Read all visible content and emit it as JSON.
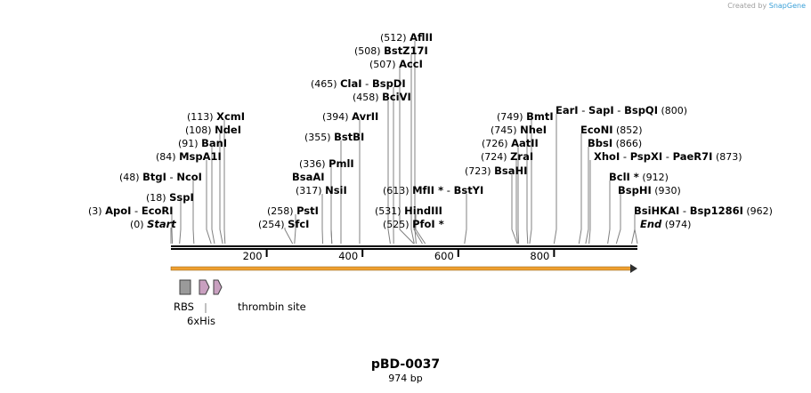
{
  "credit": {
    "prefix": "Created by",
    "brand": "SnapGene"
  },
  "title": "pBD-0037",
  "subtitle": "974 bp",
  "sequence_length": 974,
  "colors": {
    "backbone": "#000000",
    "arrow": "#f0a030",
    "rbs": "#9a9a9a",
    "his": "#c9a0c0",
    "leader": "#808080"
  },
  "ruler": [
    200,
    400,
    600,
    800
  ],
  "sites": [
    {
      "pos": "(512)",
      "enzymes": [
        "AflII"
      ],
      "cut": 512
    },
    {
      "pos": "(508)",
      "enzymes": [
        "BstZ17I"
      ],
      "cut": 508
    },
    {
      "pos": "(507)",
      "enzymes": [
        "AccI"
      ],
      "cut": 507
    },
    {
      "pos": "(465)",
      "enzymes": [
        "ClaI",
        "BspDI"
      ],
      "cut": 465
    },
    {
      "pos": "(458)",
      "enzymes": [
        "BciVI"
      ],
      "cut": 458
    },
    {
      "pos": "(394)",
      "enzymes": [
        "AvrII"
      ],
      "cut": 394
    },
    {
      "pos": "(355)",
      "enzymes": [
        "BstBI"
      ],
      "cut": 355
    },
    {
      "pos": "(336)",
      "enzymes": [
        "PmlI"
      ],
      "cut": 336
    },
    {
      "pos": "",
      "enzymes": [
        "BsaAI"
      ],
      "cut": 336
    },
    {
      "pos": "(317)",
      "enzymes": [
        "NsiI"
      ],
      "cut": 317
    },
    {
      "pos": "(258)",
      "enzymes": [
        "PstI"
      ],
      "cut": 258
    },
    {
      "pos": "(254)",
      "enzymes": [
        "SfcI"
      ],
      "cut": 254
    },
    {
      "pos": "(113)",
      "enzymes": [
        "XcmI"
      ],
      "cut": 113
    },
    {
      "pos": "(108)",
      "enzymes": [
        "NdeI"
      ],
      "cut": 108
    },
    {
      "pos": "(91)",
      "enzymes": [
        "BanI"
      ],
      "cut": 91
    },
    {
      "pos": "(84)",
      "enzymes": [
        "MspA1I"
      ],
      "cut": 84
    },
    {
      "pos": "(48)",
      "enzymes": [
        "BtgI",
        "NcoI"
      ],
      "cut": 48
    },
    {
      "pos": "(18)",
      "enzymes": [
        "SspI"
      ],
      "cut": 18
    },
    {
      "pos": "(3)",
      "enzymes": [
        "ApoI",
        "EcoRI"
      ],
      "cut": 3
    },
    {
      "pos": "(0)",
      "enzymes": [
        "Start"
      ],
      "cut": 0,
      "italic": true
    },
    {
      "pos": "(613)",
      "enzymes": [
        "MfII *",
        "BstYI"
      ],
      "cut": 613
    },
    {
      "pos": "(531)",
      "enzymes": [
        "HindIII"
      ],
      "cut": 531
    },
    {
      "pos": "(525)",
      "enzymes": [
        "PfoI *"
      ],
      "cut": 525
    },
    {
      "pos": "(749)",
      "enzymes": [
        "BmtI"
      ],
      "cut": 749
    },
    {
      "pos": "(745)",
      "enzymes": [
        "NheI"
      ],
      "cut": 745
    },
    {
      "pos": "(726)",
      "enzymes": [
        "AatII"
      ],
      "cut": 726
    },
    {
      "pos": "(724)",
      "enzymes": [
        "ZraI"
      ],
      "cut": 724
    },
    {
      "pos": "(723)",
      "enzymes": [
        "BsaHI"
      ],
      "cut": 723
    },
    {
      "pos": "(800)",
      "enzymes": [
        "EarI",
        "SapI",
        "BspQI"
      ],
      "cut": 800,
      "pos_after": true
    },
    {
      "pos": "(852)",
      "enzymes": [
        "EcoNI"
      ],
      "cut": 852,
      "pos_after": true
    },
    {
      "pos": "(866)",
      "enzymes": [
        "BbsI"
      ],
      "cut": 866,
      "pos_after": true
    },
    {
      "pos": "(873)",
      "enzymes": [
        "XhoI",
        "PspXI",
        "PaeR7I"
      ],
      "cut": 873,
      "pos_after": true
    },
    {
      "pos": "(912)",
      "enzymes": [
        "BclI *"
      ],
      "cut": 912,
      "pos_after": true
    },
    {
      "pos": "(930)",
      "enzymes": [
        "BspHI"
      ],
      "cut": 930,
      "pos_after": true
    },
    {
      "pos": "(962)",
      "enzymes": [
        "BsiHKAI",
        "Bsp1286I"
      ],
      "cut": 962,
      "pos_after": true
    },
    {
      "pos": "(974)",
      "enzymes": [
        "End"
      ],
      "cut": 974,
      "pos_after": true,
      "italic": true
    }
  ],
  "features": [
    {
      "name": "RBS",
      "type": "rbs"
    },
    {
      "name": "thrombin site",
      "type": "his"
    },
    {
      "name": "6xHis",
      "type": "his"
    }
  ]
}
